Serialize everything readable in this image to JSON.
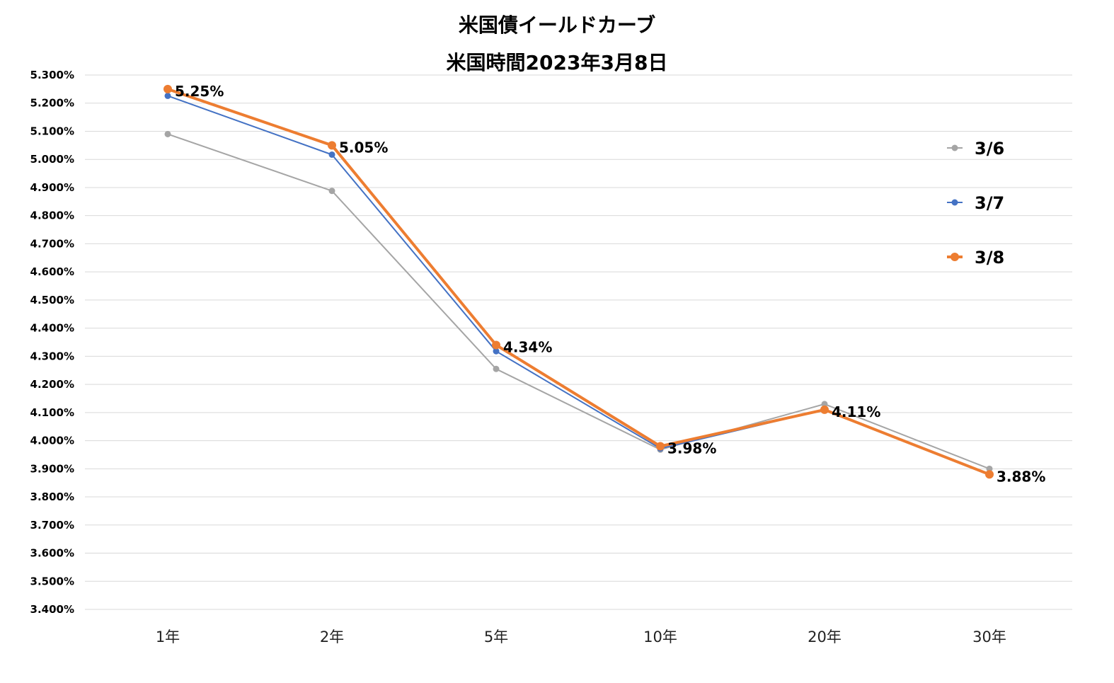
{
  "chart_data": {
    "type": "line",
    "title": "米国債イールドカーブ",
    "subtitle": "米国時間2023年3月8日",
    "categories": [
      "1年",
      "2年",
      "5年",
      "10年",
      "20年",
      "30年"
    ],
    "y_ticks": [
      "5.300%",
      "5.200%",
      "5.100%",
      "5.000%",
      "4.900%",
      "4.800%",
      "4.700%",
      "4.600%",
      "4.500%",
      "4.400%",
      "4.300%",
      "4.200%",
      "4.100%",
      "4.000%",
      "3.900%",
      "3.800%",
      "3.700%",
      "3.600%",
      "3.500%",
      "3.400%"
    ],
    "ylim": [
      3.4,
      5.3
    ],
    "grid": true,
    "legend_position": "right",
    "series": [
      {
        "name": "3/6",
        "values": [
          5.09,
          4.888,
          4.255,
          3.968,
          4.13,
          3.9
        ],
        "color": "#a5a5a5"
      },
      {
        "name": "3/7",
        "values": [
          5.226,
          5.017,
          4.318,
          3.972,
          4.11,
          3.878
        ],
        "color": "#4472c4"
      },
      {
        "name": "3/8",
        "values": [
          5.25,
          5.05,
          4.34,
          3.98,
          4.11,
          3.88
        ],
        "color": "#ed7d31"
      }
    ],
    "data_labels": [
      "5.25%",
      "5.05%",
      "4.34%",
      "3.98%",
      "4.11%",
      "3.88%"
    ],
    "data_label_series": "3/8"
  }
}
